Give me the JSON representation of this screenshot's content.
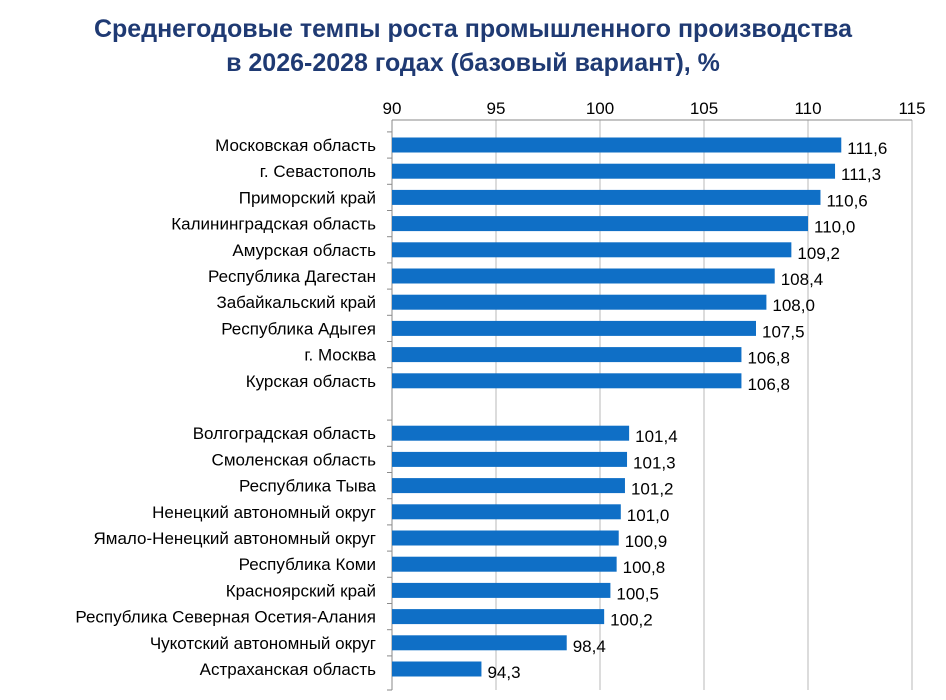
{
  "chart_data": {
    "type": "bar",
    "orientation": "horizontal",
    "title_lines": [
      "Среднегодовые темпы роста промышленного производства",
      "в 2026-2028 годах (базовый вариант), %"
    ],
    "xlim": [
      90,
      115
    ],
    "x_ticks": [
      "90",
      "95",
      "100",
      "105",
      "110",
      "115"
    ],
    "x_tick_values": [
      90,
      95,
      100,
      105,
      110,
      115
    ],
    "axis_position": "top",
    "grid": true,
    "bar_color": "#0f6fc6",
    "groups": [
      {
        "categories": [
          "Московская область",
          "г. Севастополь",
          "Приморский край",
          "Калининградская область",
          "Амурская область",
          "Республика Дагестан",
          "Забайкальский край",
          "Республика Адыгея",
          "г. Москва",
          "Курская область"
        ],
        "values": [
          111.6,
          111.3,
          110.6,
          110.0,
          109.2,
          108.4,
          108.0,
          107.5,
          106.8,
          106.8
        ],
        "value_labels": [
          "111,6",
          "111,3",
          "110,6",
          "110,0",
          "109,2",
          "108,4",
          "108,0",
          "107,5",
          "106,8",
          "106,8"
        ]
      },
      {
        "categories": [
          "Волгоградская область",
          "Смоленская область",
          "Республика Тыва",
          "Ненецкий автономный округ",
          "Ямало-Ненецкий автономный округ",
          "Республика Коми",
          "Красноярский край",
          "Республика Северная Осетия-Алания",
          "Чукотский автономный округ",
          "Астраханская область"
        ],
        "values": [
          101.4,
          101.3,
          101.2,
          101.0,
          100.9,
          100.8,
          100.5,
          100.2,
          98.4,
          94.3
        ],
        "value_labels": [
          "101,4",
          "101,3",
          "101,2",
          "101,0",
          "100,9",
          "100,8",
          "100,5",
          "100,2",
          "98,4",
          "94,3"
        ]
      }
    ]
  }
}
